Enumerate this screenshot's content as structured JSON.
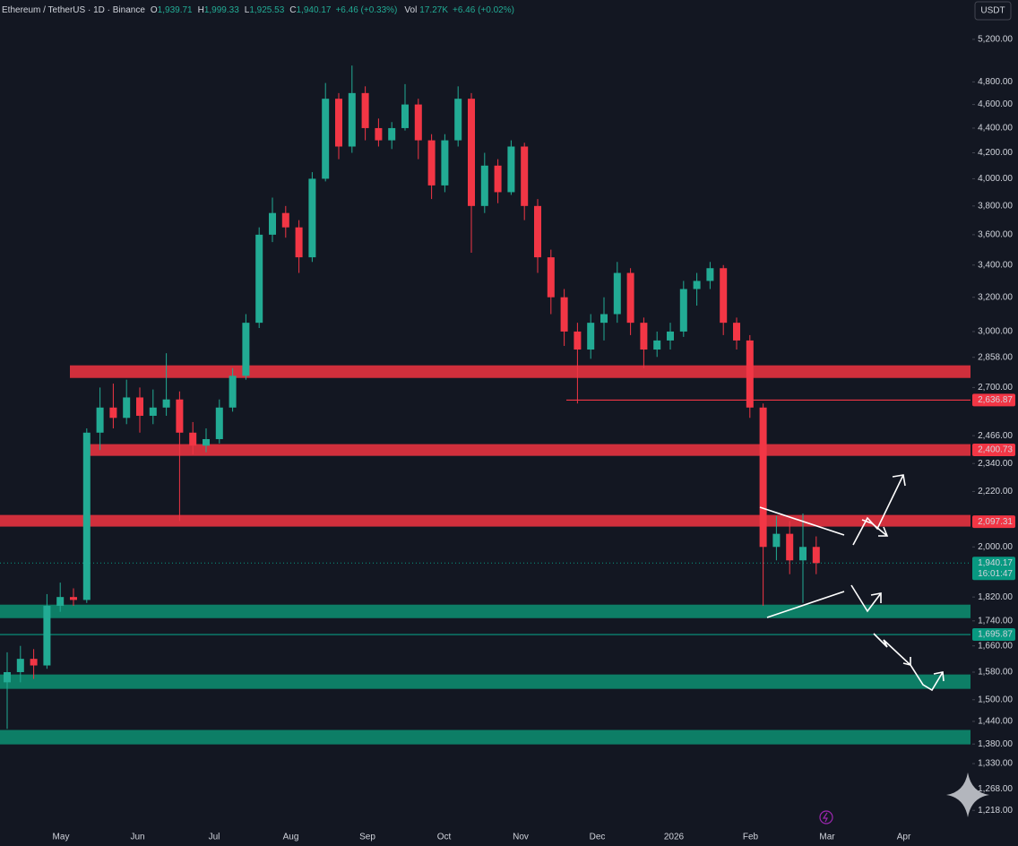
{
  "chart_data": {
    "type": "candlestick",
    "symbol": "Ethereum / TetherUS · 1D · Binance",
    "ohlc": [
      {
        "key": "O",
        "value": "1,939.71"
      },
      {
        "key": "H",
        "value": "1,999.33"
      },
      {
        "key": "L",
        "value": "1,925.53"
      },
      {
        "key": "C",
        "value": "1,940.17"
      }
    ],
    "change": "+6.46 (+0.33%)",
    "volume_label": "Vol",
    "volume": "17.27K",
    "volume_change": "+6.46 (+0.02%)",
    "currency": "USDT",
    "log_scale": true,
    "ylim": [
      1186,
      5600
    ],
    "yticks": [
      {
        "value": 5200,
        "label": "5,200.00"
      },
      {
        "value": 4800,
        "label": "4,800.00"
      },
      {
        "value": 4600,
        "label": "4,600.00"
      },
      {
        "value": 4400,
        "label": "4,400.00"
      },
      {
        "value": 4200,
        "label": "4,200.00"
      },
      {
        "value": 4000,
        "label": "4,000.00"
      },
      {
        "value": 3800,
        "label": "3,800.00"
      },
      {
        "value": 3600,
        "label": "3,600.00"
      },
      {
        "value": 3400,
        "label": "3,400.00"
      },
      {
        "value": 3200,
        "label": "3,200.00"
      },
      {
        "value": 3000,
        "label": "3,000.00"
      },
      {
        "value": 2858,
        "label": "2,858.00"
      },
      {
        "value": 2700,
        "label": "2,700.00"
      },
      {
        "value": 2466,
        "label": "2,466.00"
      },
      {
        "value": 2340,
        "label": "2,340.00"
      },
      {
        "value": 2220,
        "label": "2,220.00"
      },
      {
        "value": 2000,
        "label": "2,000.00"
      },
      {
        "value": 1820,
        "label": "1,820.00"
      },
      {
        "value": 1740,
        "label": "1,740.00"
      },
      {
        "value": 1660,
        "label": "1,660.00"
      },
      {
        "value": 1580,
        "label": "1,580.00"
      },
      {
        "value": 1500,
        "label": "1,500.00"
      },
      {
        "value": 1440,
        "label": "1,440.00"
      },
      {
        "value": 1380,
        "label": "1,380.00"
      },
      {
        "value": 1330,
        "label": "1,330.00"
      },
      {
        "value": 1268,
        "label": "1,268.00"
      },
      {
        "value": 1218,
        "label": "1,218.00"
      }
    ],
    "x_labels": [
      "May",
      "Jun",
      "Jul",
      "Aug",
      "Sep",
      "Oct",
      "Nov",
      "Dec",
      "2026",
      "Feb",
      "Mar",
      "Apr"
    ],
    "up_color": "#22ab94",
    "down_color": "#f23645",
    "candles": [
      [
        1550,
        1640,
        1420,
        1580
      ],
      [
        1580,
        1660,
        1550,
        1620
      ],
      [
        1620,
        1650,
        1560,
        1600
      ],
      [
        1600,
        1830,
        1590,
        1790
      ],
      [
        1790,
        1870,
        1770,
        1820
      ],
      [
        1820,
        1850,
        1790,
        1810
      ],
      [
        1810,
        2500,
        1800,
        2480
      ],
      [
        2480,
        2700,
        2400,
        2600
      ],
      [
        2600,
        2720,
        2500,
        2550
      ],
      [
        2550,
        2740,
        2520,
        2650
      ],
      [
        2650,
        2700,
        2480,
        2560
      ],
      [
        2560,
        2690,
        2520,
        2600
      ],
      [
        2600,
        2880,
        2560,
        2640
      ],
      [
        2640,
        2680,
        2100,
        2480
      ],
      [
        2480,
        2530,
        2380,
        2420
      ],
      [
        2420,
        2500,
        2390,
        2450
      ],
      [
        2450,
        2640,
        2430,
        2600
      ],
      [
        2600,
        2800,
        2580,
        2760
      ],
      [
        2760,
        3100,
        2740,
        3050
      ],
      [
        3050,
        3650,
        3020,
        3600
      ],
      [
        3600,
        3860,
        3550,
        3750
      ],
      [
        3750,
        3800,
        3580,
        3650
      ],
      [
        3650,
        3700,
        3350,
        3450
      ],
      [
        3450,
        4050,
        3420,
        4000
      ],
      [
        4000,
        4790,
        3980,
        4650
      ],
      [
        4650,
        4700,
        4150,
        4250
      ],
      [
        4250,
        4950,
        4200,
        4700
      ],
      [
        4700,
        4760,
        4300,
        4400
      ],
      [
        4400,
        4480,
        4250,
        4300
      ],
      [
        4300,
        4450,
        4230,
        4400
      ],
      [
        4400,
        4780,
        4380,
        4600
      ],
      [
        4600,
        4650,
        4150,
        4300
      ],
      [
        4300,
        4350,
        3850,
        3950
      ],
      [
        3950,
        4350,
        3900,
        4300
      ],
      [
        4300,
        4760,
        4250,
        4650
      ],
      [
        4650,
        4700,
        3480,
        3800
      ],
      [
        3800,
        4200,
        3750,
        4100
      ],
      [
        4100,
        4150,
        3820,
        3900
      ],
      [
        3900,
        4300,
        3880,
        4250
      ],
      [
        4250,
        4280,
        3700,
        3800
      ],
      [
        3800,
        3850,
        3350,
        3450
      ],
      [
        3450,
        3500,
        3100,
        3200
      ],
      [
        3200,
        3250,
        2920,
        3000
      ],
      [
        3000,
        3050,
        2620,
        2900
      ],
      [
        2900,
        3100,
        2850,
        3050
      ],
      [
        3050,
        3200,
        2950,
        3100
      ],
      [
        3100,
        3420,
        3050,
        3350
      ],
      [
        3350,
        3380,
        2980,
        3050
      ],
      [
        3050,
        3080,
        2800,
        2900
      ],
      [
        2900,
        3000,
        2860,
        2950
      ],
      [
        2950,
        3050,
        2900,
        3000
      ],
      [
        3000,
        3300,
        2970,
        3250
      ],
      [
        3250,
        3350,
        3150,
        3300
      ],
      [
        3300,
        3420,
        3250,
        3380
      ],
      [
        3380,
        3400,
        2980,
        3050
      ],
      [
        3050,
        3080,
        2900,
        2950
      ],
      [
        2950,
        2980,
        2550,
        2600
      ],
      [
        2600,
        2620,
        1790,
        2000
      ],
      [
        2000,
        2120,
        1950,
        2050
      ],
      [
        2050,
        2100,
        1900,
        1950
      ],
      [
        1950,
        2130,
        1800,
        2000
      ],
      [
        2000,
        2040,
        1900,
        1940.17
      ]
    ],
    "zones": [
      {
        "low": 2749,
        "high": 2815,
        "color": "#e5323f"
      },
      {
        "low": 2374,
        "high": 2427,
        "color": "#e5323f"
      },
      {
        "low": 2078,
        "high": 2124,
        "color": "#e5323f"
      },
      {
        "low": 1749,
        "high": 1794,
        "color": "#0d8a6e"
      },
      {
        "low": 1531,
        "high": 1573,
        "color": "#0d8a6e"
      },
      {
        "low": 1379,
        "high": 1417,
        "color": "#0d8a6e"
      }
    ],
    "price_tags": [
      {
        "value": 2636.87,
        "label": "2,636.87",
        "color": "#f23645"
      },
      {
        "value": 2400.73,
        "label": "2,400.73",
        "color": "#f23645"
      },
      {
        "value": 2097.31,
        "label": "2,097.31",
        "color": "#f23645"
      },
      {
        "value": 1695.87,
        "label": "1,695.87",
        "color": "#089981"
      }
    ],
    "last_price": {
      "value": 1940.17,
      "label": "1,940.17",
      "timer": "16:01:47",
      "color": "#089981"
    }
  }
}
